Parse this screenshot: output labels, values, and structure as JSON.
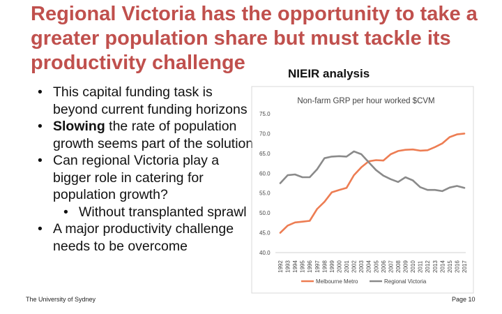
{
  "slide": {
    "title": "Regional Victoria has the opportunity to take a greater population share but must tackle its productivity challenge",
    "subtitle": "NIEIR analysis",
    "bullets": [
      {
        "text": "This capital funding task is beyond current funding horizons"
      },
      {
        "bold": "Slowing",
        "text": " the rate of population growth seems part of the solution"
      },
      {
        "text": "Can regional Victoria play a bigger role in catering for population growth?"
      },
      {
        "text": "Without transplanted sprawl"
      },
      {
        "text": "A major productivity challenge needs to be overcome"
      }
    ],
    "footer_left": "The University of Sydney",
    "footer_right": "Page 10"
  },
  "colors": {
    "title": "#c0504d",
    "melbourne": "#ed7d53",
    "regional": "#8a8a8a"
  },
  "chart_data": {
    "type": "line",
    "title": "Non-farm GRP per hour worked $CVM",
    "x": [
      "1992",
      "1993",
      "1994",
      "1995",
      "1996",
      "1997",
      "1998",
      "1999",
      "2000",
      "2001",
      "2002",
      "2003",
      "2004",
      "2005",
      "2006",
      "2007",
      "2008",
      "2009",
      "2010",
      "2011",
      "2012",
      "2013",
      "2014",
      "2015",
      "2016",
      "2017"
    ],
    "ylim": [
      40,
      75
    ],
    "yticks": [
      "75.0",
      "70.0",
      "65.0",
      "60.0",
      "55.0",
      "50.0",
      "45.0",
      "40.0"
    ],
    "grid": false,
    "legend": "bottom",
    "series": [
      {
        "name": "Melbourne Metro",
        "values": [
          45.0,
          46.8,
          47.6,
          47.8,
          48.0,
          51.0,
          52.8,
          55.2,
          55.8,
          56.3,
          59.5,
          61.5,
          63.0,
          63.3,
          63.2,
          64.8,
          65.6,
          65.9,
          66.0,
          65.7,
          65.8,
          66.6,
          67.5,
          69.1,
          69.8,
          70.0
        ]
      },
      {
        "name": "Regional Victoria",
        "values": [
          57.5,
          59.5,
          59.7,
          59.0,
          59.0,
          61.0,
          63.8,
          64.2,
          64.3,
          64.2,
          65.5,
          64.8,
          62.8,
          60.8,
          59.4,
          58.5,
          57.8,
          59.0,
          58.2,
          56.5,
          55.8,
          55.8,
          55.5,
          56.4,
          56.8,
          56.3
        ]
      }
    ]
  }
}
